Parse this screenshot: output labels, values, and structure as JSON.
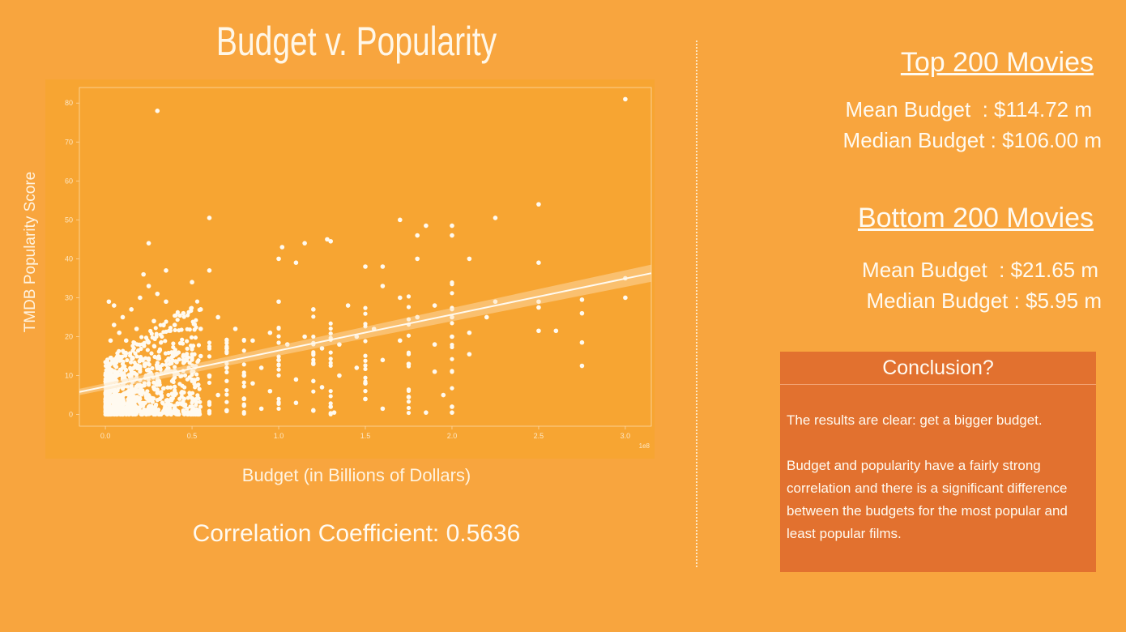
{
  "title": "Budget v. Popularity",
  "colors": {
    "background": "#f8a53e",
    "plot_bg": "#f7a532",
    "conclusion_bg": "#e2712f",
    "point": "#fffaf0"
  },
  "correlation_label": "Correlation Coefficient: 0.5636",
  "stats": {
    "top": {
      "heading": "Top 200 Movies",
      "mean": "Mean Budget  : $114.72 m",
      "median": "Median Budget : $106.00 m"
    },
    "bottom": {
      "heading": "Bottom 200 Movies",
      "mean": "Mean Budget  : $21.65 m",
      "median": "Median Budget : $5.95 m"
    }
  },
  "conclusion": {
    "heading": "Conclusion?",
    "paragraphs": [
      "The results are clear: get a bigger budget.",
      "Budget and popularity have a fairly strong correlation and there is a significant difference between the budgets for the most popular and least popular films."
    ]
  },
  "chart_data": {
    "type": "scatter",
    "title": "",
    "xlabel": "Budget (in Billions of Dollars)",
    "ylabel": "TMDB Popularity Score",
    "x_scale_note": "1e8",
    "xlim": [
      -0.15,
      3.15
    ],
    "ylim": [
      -3,
      84
    ],
    "xticks": [
      "0.0",
      "0.5",
      "1.0",
      "1.5",
      "2.0",
      "2.5",
      "3.0"
    ],
    "yticks": [
      "0",
      "10",
      "20",
      "30",
      "40",
      "50",
      "60",
      "70",
      "80"
    ],
    "grid": false,
    "regression": {
      "x": [
        -0.15,
        3.15
      ],
      "y": [
        5.8,
        36.3
      ]
    },
    "series": [
      {
        "points": [
          [
            0.3,
            78
          ],
          [
            3.0,
            81
          ],
          [
            0.6,
            50.5
          ],
          [
            2.5,
            54
          ],
          [
            0.25,
            44
          ],
          [
            1.28,
            45
          ],
          [
            1.3,
            44.5
          ],
          [
            1.7,
            50
          ],
          [
            1.85,
            48.5
          ],
          [
            2.0,
            48.5
          ],
          [
            2.0,
            46
          ],
          [
            2.25,
            50.5
          ],
          [
            1.8,
            46
          ],
          [
            1.0,
            40
          ],
          [
            1.02,
            43
          ],
          [
            1.1,
            39
          ],
          [
            1.15,
            44
          ],
          [
            1.5,
            38
          ],
          [
            1.6,
            38
          ],
          [
            1.8,
            40
          ],
          [
            2.1,
            40
          ],
          [
            2.5,
            39
          ],
          [
            0.35,
            37
          ],
          [
            0.22,
            36
          ],
          [
            0.6,
            37
          ],
          [
            0.5,
            34
          ],
          [
            2.75,
            29.5
          ],
          [
            3.0,
            35
          ],
          [
            3.0,
            30
          ],
          [
            2.5,
            29
          ],
          [
            2.5,
            27.5
          ],
          [
            2.25,
            29
          ],
          [
            2.2,
            25
          ],
          [
            2.75,
            26
          ],
          [
            2.75,
            18.5
          ],
          [
            2.75,
            12.5
          ],
          [
            2.5,
            21.5
          ],
          [
            2.6,
            21.5
          ],
          [
            2.1,
            21
          ],
          [
            2.1,
            15.5
          ],
          [
            1.95,
            5
          ],
          [
            2.0,
            2
          ],
          [
            2.0,
            0.5
          ],
          [
            1.85,
            0.5
          ],
          [
            1.75,
            4.5
          ],
          [
            1.5,
            4
          ],
          [
            1.6,
            1.5
          ],
          [
            1.3,
            2
          ],
          [
            1.32,
            0.5
          ],
          [
            1.1,
            3
          ],
          [
            1.2,
            1
          ],
          [
            0.9,
            1.5
          ],
          [
            0.95,
            6
          ],
          [
            0.8,
            4
          ],
          [
            0.7,
            1
          ],
          [
            0.65,
            5
          ],
          [
            0.5,
            2
          ],
          [
            0.45,
            1
          ],
          [
            0.4,
            0.5
          ],
          [
            0.35,
            1
          ],
          [
            1.0,
            29
          ],
          [
            1.2,
            27
          ],
          [
            1.4,
            28
          ],
          [
            1.6,
            33
          ],
          [
            1.7,
            30
          ],
          [
            1.9,
            28
          ],
          [
            1.8,
            25
          ],
          [
            2.0,
            25
          ],
          [
            2.0,
            20
          ],
          [
            1.9,
            18
          ],
          [
            1.7,
            19
          ],
          [
            1.55,
            22
          ],
          [
            1.45,
            20
          ],
          [
            1.35,
            18
          ],
          [
            1.25,
            17
          ],
          [
            1.15,
            20
          ],
          [
            1.05,
            18
          ],
          [
            0.95,
            21
          ],
          [
            0.85,
            19
          ],
          [
            0.75,
            22
          ],
          [
            0.7,
            17
          ],
          [
            0.65,
            25
          ],
          [
            0.55,
            27
          ],
          [
            0.55,
            22
          ],
          [
            0.45,
            26
          ],
          [
            0.4,
            23
          ],
          [
            0.4,
            16
          ],
          [
            0.35,
            29
          ],
          [
            0.3,
            31
          ],
          [
            0.28,
            24
          ],
          [
            0.25,
            33
          ],
          [
            0.2,
            30
          ],
          [
            0.18,
            22
          ],
          [
            0.15,
            27
          ],
          [
            0.12,
            19
          ],
          [
            0.1,
            25
          ],
          [
            0.08,
            21
          ],
          [
            0.05,
            28
          ],
          [
            0.05,
            23
          ],
          [
            0.03,
            19
          ],
          [
            0.02,
            29
          ],
          [
            1.45,
            12
          ],
          [
            1.35,
            10
          ],
          [
            1.6,
            14
          ],
          [
            1.75,
            13
          ],
          [
            1.9,
            11
          ],
          [
            1.0,
            14
          ],
          [
            0.9,
            12
          ],
          [
            0.8,
            10
          ],
          [
            0.7,
            12
          ],
          [
            0.6,
            10
          ],
          [
            0.5,
            11
          ],
          [
            0.45,
            14
          ],
          [
            0.55,
            15
          ],
          [
            1.2,
            13
          ],
          [
            1.1,
            9
          ],
          [
            1.25,
            7
          ],
          [
            1.5,
            8
          ],
          [
            0.85,
            8
          ]
        ]
      }
    ]
  }
}
